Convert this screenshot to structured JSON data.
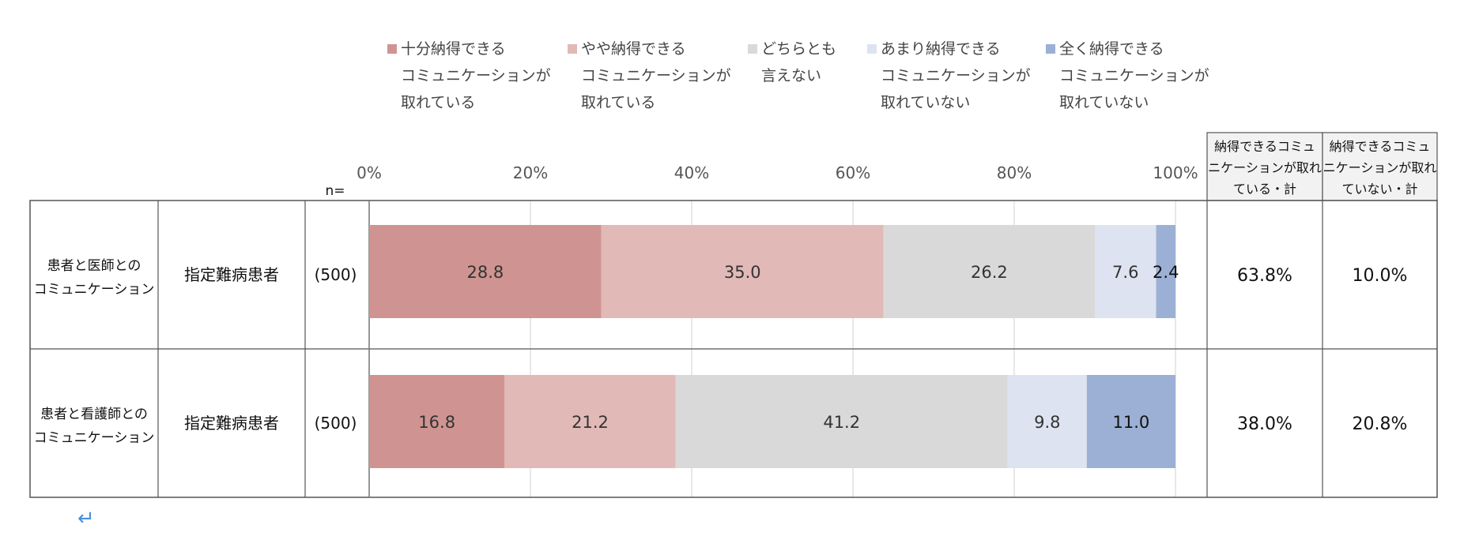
{
  "chart_data": {
    "type": "bar",
    "orientation": "horizontal",
    "stacked": "100%",
    "series": [
      {
        "name": "十分納得できる\nコミュニケーションが\n取れている",
        "values": [
          28.8,
          16.8
        ],
        "color": "#cf9491"
      },
      {
        "name": "やや納得できる\nコミュニケーションが\n取れている",
        "values": [
          35.0,
          21.2
        ],
        "color": "#e1b9b7"
      },
      {
        "name": "どちらとも\n言えない",
        "values": [
          26.2,
          41.2
        ],
        "color": "#d9d9d9"
      },
      {
        "name": "あまり納得できる\nコミュニケーションが\n取れていない",
        "values": [
          7.6,
          9.8
        ],
        "color": "#dde3f0"
      },
      {
        "name": "全く納得できる\nコミュニケーションが\n取れていない",
        "values": [
          2.4,
          11.0
        ],
        "color": "#9bb0d4"
      }
    ],
    "rows": [
      {
        "category": "患者と医師との\nコミュニケーション",
        "group": "指定難病患者",
        "n": "(500)",
        "sum_yes": "63.8%",
        "sum_no": "10.0%"
      },
      {
        "category": "患者と看護師との\nコミュニケーション",
        "group": "指定難病患者",
        "n": "(500)",
        "sum_yes": "38.0%",
        "sum_no": "20.8%"
      }
    ],
    "xlim": [
      0,
      100
    ],
    "xticks": [
      "0%",
      "20%",
      "40%",
      "60%",
      "80%",
      "100%"
    ],
    "n_label": "n=",
    "summary_headers": [
      "納得できるコミュ\nニケーションが取れ\nている・計",
      "納得できるコミュ\nニケーションが取れ\nていない・計"
    ],
    "grid": true,
    "legend_position": "top"
  },
  "return_mark": "↵"
}
